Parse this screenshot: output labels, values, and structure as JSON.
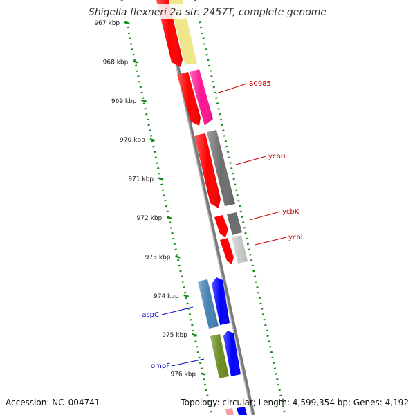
{
  "title": "Shigella flexneri 2a str. 2457T, complete genome",
  "footer": {
    "accession": "Accession: NC_004741",
    "summary": "Topology: circular; Length: 4,599,354 bp; Genes: 4,192"
  },
  "ticks": [
    {
      "label": "967 kbp"
    },
    {
      "label": "968 kbp"
    },
    {
      "label": "969 kbp"
    },
    {
      "label": "970 kbp"
    },
    {
      "label": "971 kbp"
    },
    {
      "label": "972 kbp"
    },
    {
      "label": "973 kbp"
    },
    {
      "label": "974 kbp"
    },
    {
      "label": "975 kbp"
    },
    {
      "label": "976 kbp"
    }
  ],
  "gene_labels": [
    {
      "name": "S0985",
      "color": "#cc0000"
    },
    {
      "name": "ycbB",
      "color": "#cc0000"
    },
    {
      "name": "ycbK",
      "color": "#cc0000"
    },
    {
      "name": "ycbL",
      "color": "#cc0000"
    },
    {
      "name": "aspC",
      "color": "#0000cc"
    },
    {
      "name": "ompF",
      "color": "#0000cc"
    }
  ],
  "colors": {
    "backbone": "#8a8a8a",
    "tick_marks": "#138a13",
    "red": "#ff0000",
    "yellow": "#f0e68c",
    "magenta": "#ff1493",
    "dark_gray": "#6e6e6e",
    "light_gray": "#c8c8c8",
    "steelblue": "#4682b4",
    "blue": "#0000ff",
    "olive": "#6b8e23"
  }
}
